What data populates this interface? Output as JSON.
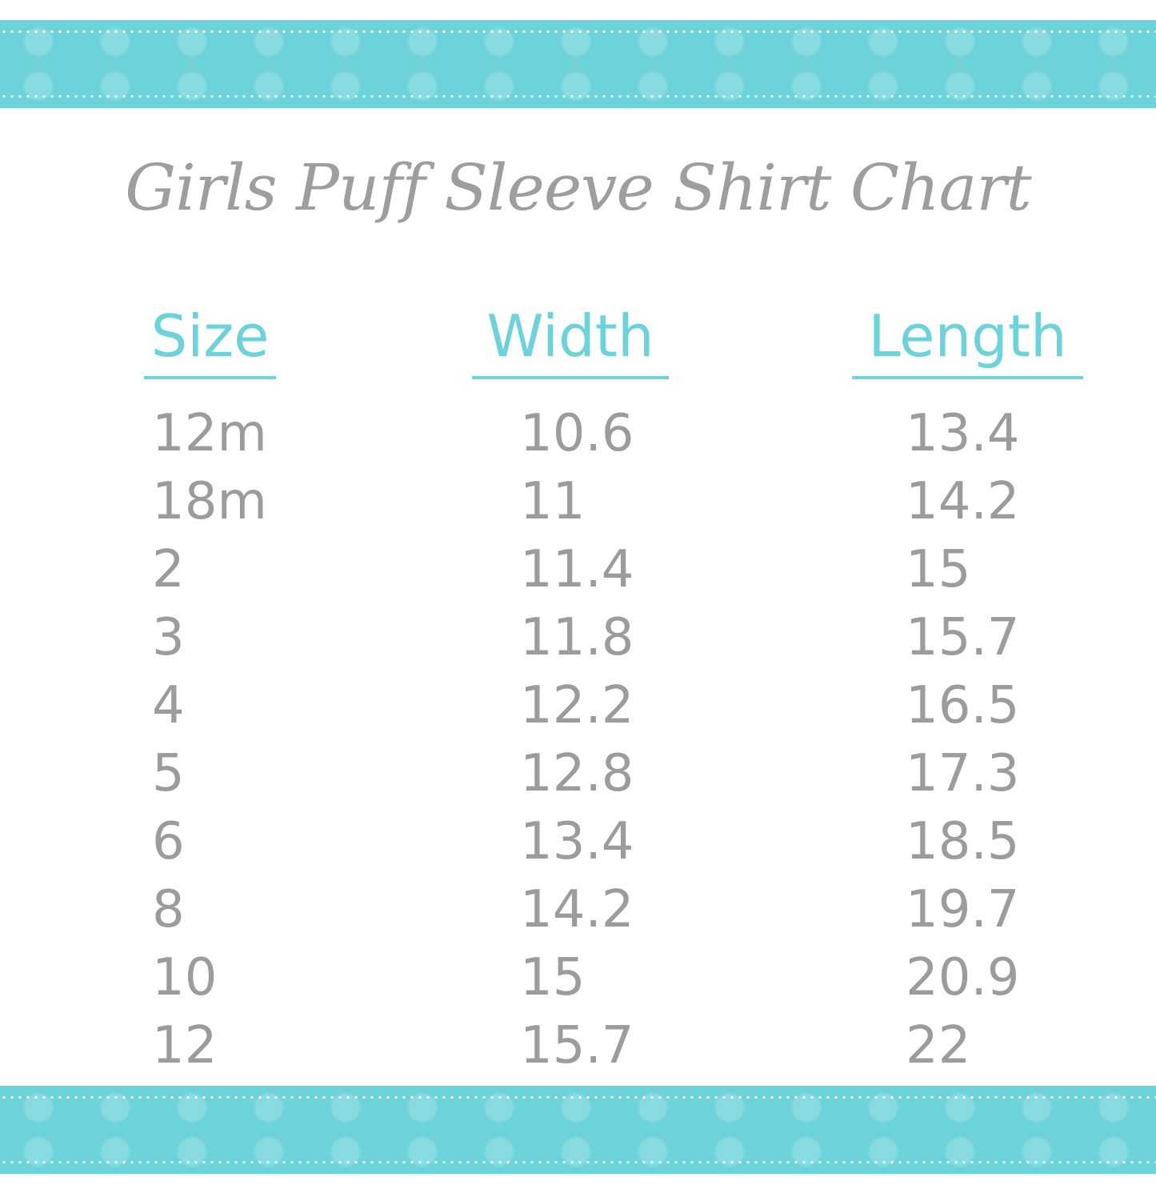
{
  "title": "Girls Puff Sleeve Shirt Chart",
  "colors": {
    "banner": "#6dd3da",
    "header": "#6dd3da",
    "text": "#9c9c9c"
  },
  "chart_data": {
    "type": "table",
    "title": "Girls Puff Sleeve Shirt Chart",
    "columns": [
      "Size",
      "Width",
      "Length"
    ],
    "rows": [
      [
        "12m",
        "10.6",
        "13.4"
      ],
      [
        "18m",
        "11",
        "14.2"
      ],
      [
        "2",
        "11.4",
        "15"
      ],
      [
        "3",
        "11.8",
        "15.7"
      ],
      [
        "4",
        "12.2",
        "16.5"
      ],
      [
        "5",
        "12.8",
        "17.3"
      ],
      [
        "6",
        "13.4",
        "18.5"
      ],
      [
        "8",
        "14.2",
        "19.7"
      ],
      [
        "10",
        "15",
        "20.9"
      ],
      [
        "12",
        "15.7",
        "22"
      ]
    ]
  }
}
